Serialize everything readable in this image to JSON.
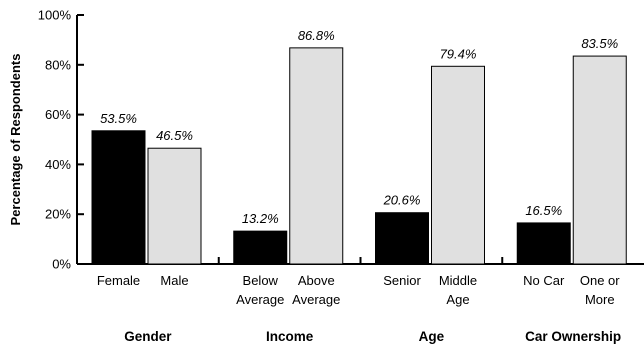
{
  "chart_data": {
    "type": "bar",
    "ylabel": "Percentage of Respondents",
    "ylim": [
      0,
      100
    ],
    "yticks": [
      "0%",
      "20%",
      "40%",
      "60%",
      "80%",
      "100%"
    ],
    "value_format": "percent_one_decimal",
    "colors": {
      "first_bar": "#000000",
      "second_bar": "#e0e0e0",
      "outline": "#000000"
    },
    "groups": [
      {
        "name": "Gender",
        "bars": [
          {
            "label_lines": [
              "Female"
            ],
            "value": 53.5,
            "value_label": "53.5%"
          },
          {
            "label_lines": [
              "Male"
            ],
            "value": 46.5,
            "value_label": "46.5%"
          }
        ]
      },
      {
        "name": "Income",
        "bars": [
          {
            "label_lines": [
              "Below",
              "Average"
            ],
            "value": 13.2,
            "value_label": "13.2%"
          },
          {
            "label_lines": [
              "Above",
              "Average"
            ],
            "value": 86.8,
            "value_label": "86.8%"
          }
        ]
      },
      {
        "name": "Age",
        "bars": [
          {
            "label_lines": [
              "Senior"
            ],
            "value": 20.6,
            "value_label": "20.6%"
          },
          {
            "label_lines": [
              "Middle",
              "Age"
            ],
            "value": 79.4,
            "value_label": "79.4%"
          }
        ]
      },
      {
        "name": "Car Ownership",
        "bars": [
          {
            "label_lines": [
              "No Car"
            ],
            "value": 16.5,
            "value_label": "16.5%"
          },
          {
            "label_lines": [
              "One or",
              "More"
            ],
            "value": 83.5,
            "value_label": "83.5%"
          }
        ]
      }
    ]
  }
}
